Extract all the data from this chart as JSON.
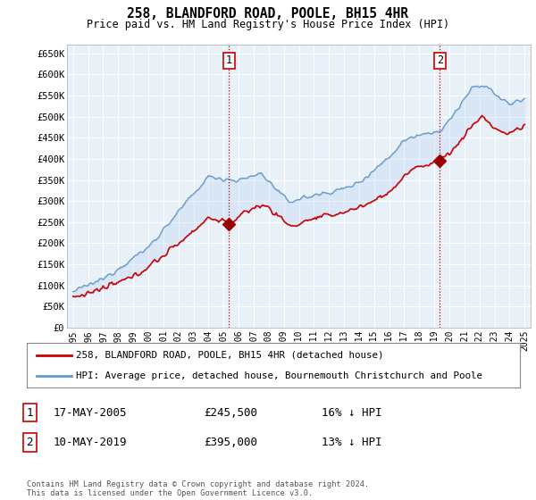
{
  "title": "258, BLANDFORD ROAD, POOLE, BH15 4HR",
  "subtitle": "Price paid vs. HM Land Registry's House Price Index (HPI)",
  "ylabel_ticks": [
    "£0",
    "£50K",
    "£100K",
    "£150K",
    "£200K",
    "£250K",
    "£300K",
    "£350K",
    "£400K",
    "£450K",
    "£500K",
    "£550K",
    "£600K",
    "£650K"
  ],
  "ylabel_values": [
    0,
    50000,
    100000,
    150000,
    200000,
    250000,
    300000,
    350000,
    400000,
    450000,
    500000,
    550000,
    600000,
    650000
  ],
  "ylim": [
    0,
    670000
  ],
  "xlim_start": 1994.6,
  "xlim_end": 2025.4,
  "xtick_years": [
    1995,
    1996,
    1997,
    1998,
    1999,
    2000,
    2001,
    2002,
    2003,
    2004,
    2005,
    2006,
    2007,
    2008,
    2009,
    2010,
    2011,
    2012,
    2013,
    2014,
    2015,
    2016,
    2017,
    2018,
    2019,
    2020,
    2021,
    2022,
    2023,
    2024,
    2025
  ],
  "transaction1_x": 2005.37,
  "transaction1_y": 245500,
  "transaction2_x": 2019.36,
  "transaction2_y": 395000,
  "line1_color": "#cc0000",
  "line2_color": "#6699cc",
  "fill_color": "#ddeeff",
  "marker_color": "#990000",
  "vline_color": "#cc0000",
  "grid_color": "#cccccc",
  "background_color": "#ffffff",
  "plot_bg_color": "#ffffff",
  "legend1_label": "258, BLANDFORD ROAD, POOLE, BH15 4HR (detached house)",
  "legend2_label": "HPI: Average price, detached house, Bournemouth Christchurch and Poole",
  "transaction1_date": "17-MAY-2005",
  "transaction1_price": "£245,500",
  "transaction1_hpi": "16% ↓ HPI",
  "transaction2_date": "10-MAY-2019",
  "transaction2_price": "£395,000",
  "transaction2_hpi": "13% ↓ HPI",
  "footnote": "Contains HM Land Registry data © Crown copyright and database right 2024.\nThis data is licensed under the Open Government Licence v3.0."
}
